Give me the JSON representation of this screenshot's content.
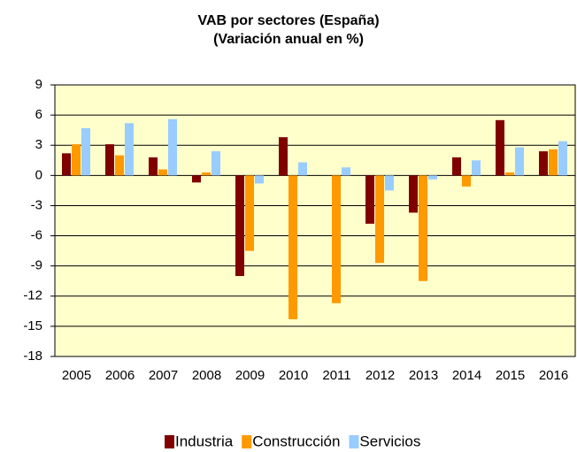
{
  "chart_data": {
    "type": "bar",
    "title": "VAB por sectores (España)",
    "subtitle": "(Variación anual en %)",
    "categories": [
      "2005",
      "2006",
      "2007",
      "2008",
      "2009",
      "2010",
      "2011",
      "2012",
      "2013",
      "2014",
      "2015",
      "2016"
    ],
    "series": [
      {
        "name": "Industria",
        "color": "#800000",
        "values": [
          2.2,
          3.1,
          1.8,
          -0.7,
          -10.0,
          3.8,
          0,
          -4.8,
          -3.7,
          1.8,
          5.5,
          2.4
        ]
      },
      {
        "name": "Construcción",
        "color": "#ff9900",
        "values": [
          3.1,
          2.0,
          0.6,
          0.3,
          -7.5,
          -14.3,
          -12.7,
          -8.7,
          -10.5,
          -1.1,
          0.3,
          2.6
        ]
      },
      {
        "name": "Servicios",
        "color": "#99ccff",
        "values": [
          4.7,
          5.2,
          5.6,
          2.4,
          -0.8,
          1.3,
          0.8,
          -1.5,
          -0.4,
          1.5,
          2.8,
          3.4
        ]
      }
    ],
    "ylim": [
      -18,
      9
    ],
    "yticks": [
      -18,
      -15,
      -12,
      -9,
      -6,
      -3,
      0,
      3,
      6,
      9
    ],
    "grid": true,
    "background": "#ffffcc",
    "legend": "bottom"
  }
}
